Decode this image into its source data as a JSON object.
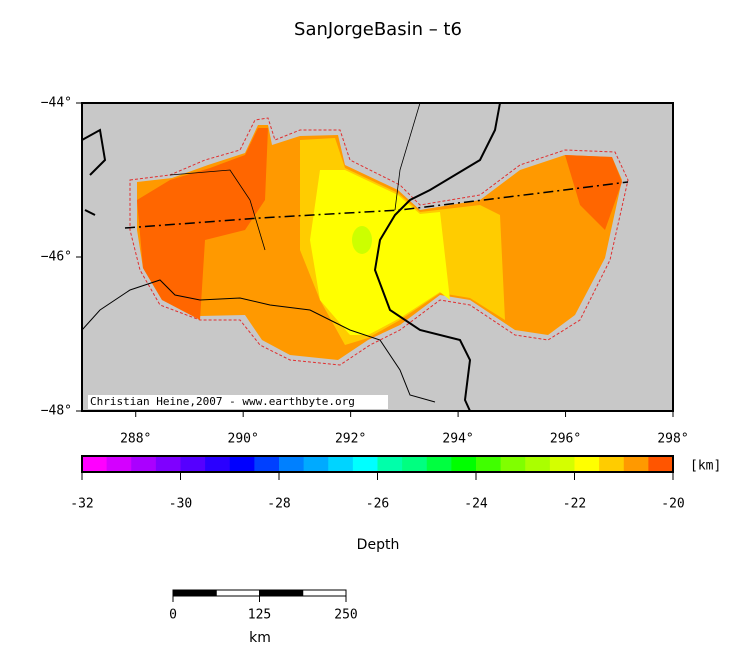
{
  "title": "SanJorgeBasin – t6",
  "credit": "Christian Heine,2007 - www.earthbyte.org",
  "map": {
    "lonlim": [
      287,
      298
    ],
    "latlim": [
      -48,
      -44
    ],
    "lonticks": [
      {
        "value": 288,
        "label": "288°"
      },
      {
        "value": 290,
        "label": "290°"
      },
      {
        "value": 292,
        "label": "292°"
      },
      {
        "value": 294,
        "label": "294°"
      },
      {
        "value": 296,
        "label": "296°"
      },
      {
        "value": 298,
        "label": "298°"
      }
    ],
    "latticks": [
      {
        "value": -44,
        "label": "−44°"
      },
      {
        "value": -46,
        "label": "−46°"
      },
      {
        "value": -48,
        "label": "−48°"
      }
    ]
  },
  "colorbar": {
    "range": [
      -32,
      -20
    ],
    "ticks": [
      -32,
      -30,
      -28,
      -26,
      -24,
      -22,
      -20
    ],
    "unit": "[km]",
    "label": "Depth",
    "colors": [
      "#ff00ff",
      "#d400ff",
      "#aa00ff",
      "#7f00ff",
      "#5500ff",
      "#2a00ff",
      "#0000ff",
      "#0040ff",
      "#0080ff",
      "#00aaff",
      "#00d4ff",
      "#00ffff",
      "#00ffaa",
      "#00ff80",
      "#00ff40",
      "#00ff00",
      "#40ff00",
      "#80ff00",
      "#aaff00",
      "#d4ff00",
      "#ffff00",
      "#ffcc00",
      "#ff9900",
      "#ff5500"
    ]
  },
  "scalebar": {
    "range": [
      0,
      250
    ],
    "ticks": [
      0,
      125,
      250
    ],
    "unit": "km"
  }
}
